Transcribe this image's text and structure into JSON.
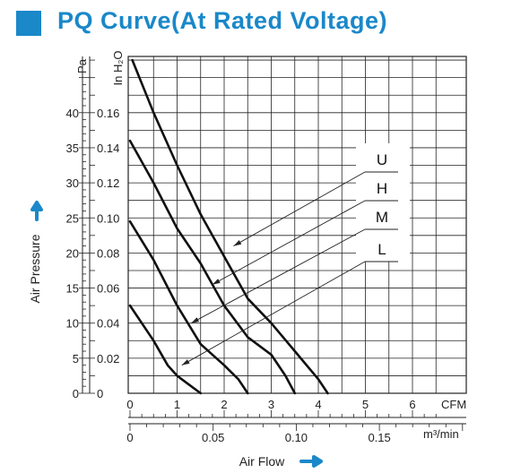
{
  "header": {
    "title": "PQ Curve(At Rated Voltage)"
  },
  "colors": {
    "accent": "#1a88c9",
    "curve": "#111111",
    "grid": "#222222"
  },
  "chart_data": {
    "type": "line",
    "title": "PQ Curve(At Rated Voltage)",
    "xlabel": "Air Flow",
    "ylabel": "Air Pressure",
    "x_unit": "CFM",
    "x_unit_secondary": "m³/min",
    "y_unit": "Pa",
    "y_unit_secondary": "In H₂O",
    "xlim": [
      0,
      7
    ],
    "ylim": [
      0,
      48
    ],
    "x_ticks": [
      "0",
      "1",
      "2",
      "3",
      "4",
      "5",
      "6"
    ],
    "x_ticks_secondary": [
      "0",
      "0.05",
      "0.10",
      "0.15"
    ],
    "y_ticks": [
      "0",
      "5",
      "10",
      "15",
      "20",
      "25",
      "30",
      "35",
      "40"
    ],
    "y_ticks_secondary": [
      "0",
      "0.02",
      "0.04",
      "0.06",
      "0.08",
      "0.10",
      "0.12",
      "0.14",
      "0.16"
    ],
    "series": [
      {
        "name": "U",
        "points": [
          [
            0.05,
            47.5
          ],
          [
            0.5,
            40
          ],
          [
            1.0,
            32.5
          ],
          [
            1.5,
            25.5
          ],
          [
            2.0,
            19.5
          ],
          [
            2.5,
            13.5
          ],
          [
            3.0,
            10
          ],
          [
            3.5,
            6
          ],
          [
            4.0,
            2
          ],
          [
            4.2,
            0
          ]
        ]
      },
      {
        "name": "H",
        "points": [
          [
            0.0,
            36
          ],
          [
            0.5,
            30
          ],
          [
            1.0,
            23.5
          ],
          [
            1.5,
            18.5
          ],
          [
            2.0,
            12.5
          ],
          [
            2.5,
            8
          ],
          [
            3.0,
            5.5
          ],
          [
            3.3,
            2.5
          ],
          [
            3.5,
            0
          ]
        ]
      },
      {
        "name": "M",
        "points": [
          [
            0.0,
            24.5
          ],
          [
            0.5,
            19
          ],
          [
            1.0,
            12.5
          ],
          [
            1.5,
            7
          ],
          [
            2.0,
            4
          ],
          [
            2.3,
            2
          ],
          [
            2.5,
            0
          ]
        ]
      },
      {
        "name": "L",
        "points": [
          [
            0.0,
            12.5
          ],
          [
            0.5,
            7.5
          ],
          [
            0.8,
            4
          ],
          [
            1.0,
            2.5
          ],
          [
            1.2,
            1.5
          ],
          [
            1.5,
            0
          ]
        ]
      }
    ]
  }
}
